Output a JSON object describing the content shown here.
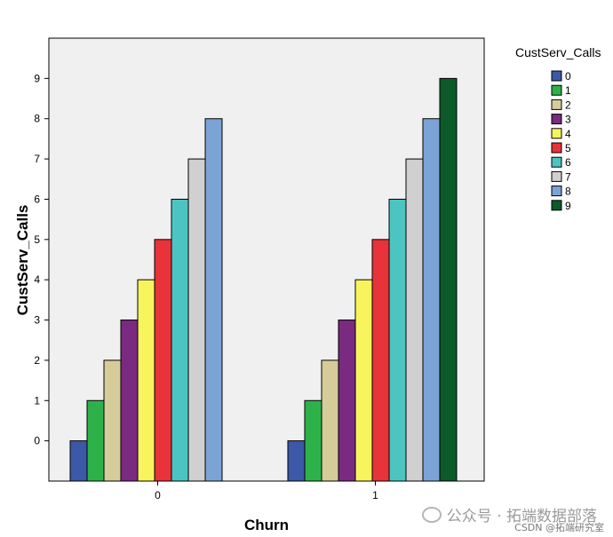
{
  "chart_data": {
    "type": "bar",
    "xlabel": "Churn",
    "ylabel": "CustServ_Calls",
    "categories": [
      "0",
      "1"
    ],
    "y_ticks": [
      0,
      1,
      2,
      3,
      4,
      5,
      6,
      7,
      8,
      9
    ],
    "ylim": [
      -1,
      10
    ],
    "grid": false,
    "legend_position": "right",
    "legend_title": "CustServ_Calls",
    "series": [
      {
        "name": "0",
        "color": "#3c58a8",
        "values": [
          0,
          0
        ]
      },
      {
        "name": "1",
        "color": "#2db24a",
        "values": [
          1,
          1
        ]
      },
      {
        "name": "2",
        "color": "#d6cc9a",
        "values": [
          2,
          2
        ]
      },
      {
        "name": "3",
        "color": "#7a2a80",
        "values": [
          3,
          3
        ]
      },
      {
        "name": "4",
        "color": "#f8f45e",
        "values": [
          4,
          4
        ]
      },
      {
        "name": "5",
        "color": "#e8333a",
        "values": [
          5,
          5
        ]
      },
      {
        "name": "6",
        "color": "#4cc5c2",
        "values": [
          6,
          6
        ]
      },
      {
        "name": "7",
        "color": "#d0d0d0",
        "values": [
          7,
          7
        ]
      },
      {
        "name": "8",
        "color": "#7ba3d6",
        "values": [
          8,
          8
        ]
      },
      {
        "name": "9",
        "color": "#0c5a2a",
        "values": [
          null,
          9
        ]
      }
    ]
  },
  "watermark": {
    "text": "公众号 · 拓端数据部落",
    "credit": "CSDN @拓端研究室"
  }
}
